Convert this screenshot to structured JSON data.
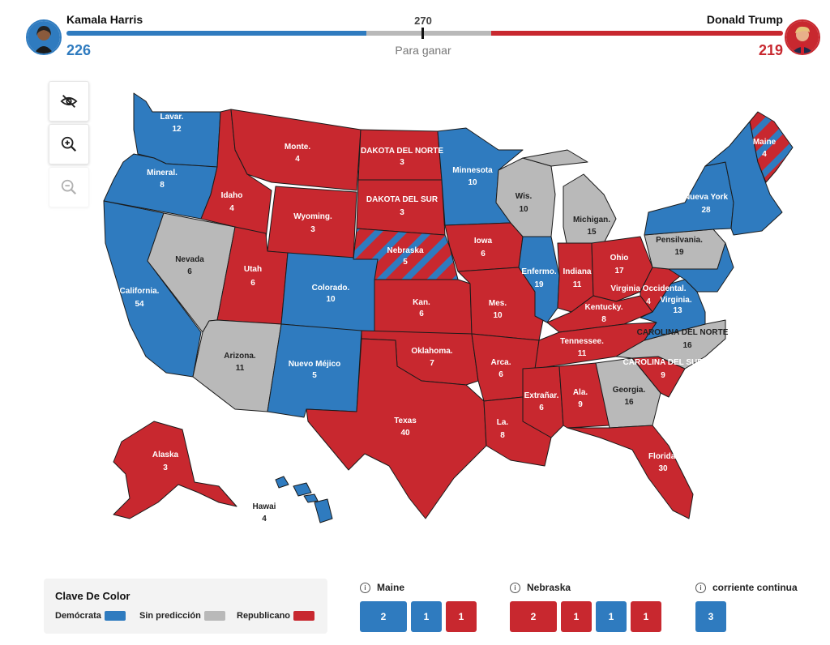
{
  "header": {
    "left_candidate": "Kamala Harris",
    "left_votes": "226",
    "right_candidate": "Donald Trump",
    "right_votes": "219",
    "threshold": "270",
    "threshold_label": "Para ganar"
  },
  "controls": {
    "hide_icon": "eye-off-icon",
    "zoom_in_icon": "zoom-in-icon",
    "zoom_out_icon": "zoom-out-icon"
  },
  "colors": {
    "democrat": "#2f7bbf",
    "republican": "#c8282f",
    "undecided": "#b9b9b9"
  },
  "map_labels": {
    "wa": "Lavar.",
    "wa_v": "12",
    "or": "Mineral.",
    "or_v": "8",
    "ca": "California.",
    "ca_v": "54",
    "nv": "Nevada",
    "nv_v": "6",
    "id": "Idaho",
    "id_v": "4",
    "mt": "Monte.",
    "mt_v": "4",
    "wy": "Wyoming.",
    "wy_v": "3",
    "ut": "Utah",
    "ut_v": "6",
    "az": "Arizona.",
    "az_v": "11",
    "co": "Colorado.",
    "co_v": "10",
    "nm": "Nuevo Méjico",
    "nm_v": "5",
    "nd": "DAKOTA DEL NORTE",
    "nd_v": "3",
    "sd": "DAKOTA DEL SUR",
    "sd_v": "3",
    "ne": "Nebraska",
    "ne_v": "5",
    "ks": "Kan.",
    "ks_v": "6",
    "ok": "Oklahoma.",
    "ok_v": "7",
    "tx": "Texas",
    "tx_v": "40",
    "mn": "Minnesota",
    "mn_v": "10",
    "ia": "Iowa",
    "ia_v": "6",
    "mo": "Mes.",
    "mo_v": "10",
    "ar": "Arca.",
    "ar_v": "6",
    "la": "La.",
    "la_v": "8",
    "wi": "Wis.",
    "wi_v": "10",
    "il": "Enfermo.",
    "il_v": "19",
    "mi": "Michigan.",
    "mi_v": "15",
    "in": "Indiana",
    "in_v": "11",
    "oh": "Ohio",
    "oh_v": "17",
    "ky": "Kentucky.",
    "ky_v": "8",
    "tn": "Tennessee.",
    "tn_v": "11",
    "ms": "Extrañar.",
    "ms_v": "6",
    "al": "Ala.",
    "al_v": "9",
    "ga": "Georgia.",
    "ga_v": "16",
    "fl": "Florida.",
    "fl_v": "30",
    "sc": "CAROLINA DEL SUR",
    "sc_v": "9",
    "nc": "CAROLINA DEL NORTE",
    "nc_v": "16",
    "va": "Virginia.",
    "va_v": "13",
    "wv": "Virginia Occidental.",
    "wv_v": "4",
    "pa": "Pensilvania.",
    "pa_v": "19",
    "ny": "Nueva York",
    "ny_v": "28",
    "me": "Maine",
    "me_v": "4",
    "ak": "Alaska",
    "ak_v": "3",
    "hi": "Hawai",
    "hi_v": "4"
  },
  "legend": {
    "title": "Clave De Color",
    "democrat": "Demócrata",
    "undecided": "Sin predicción",
    "republican": "Republicano"
  },
  "splits": {
    "maine_title": "Maine",
    "maine": [
      "2",
      "1",
      "1"
    ],
    "nebraska_title": "Nebraska",
    "nebraska": [
      "2",
      "1",
      "1",
      "1"
    ],
    "dc_title": "corriente continua",
    "dc": [
      "3"
    ]
  }
}
